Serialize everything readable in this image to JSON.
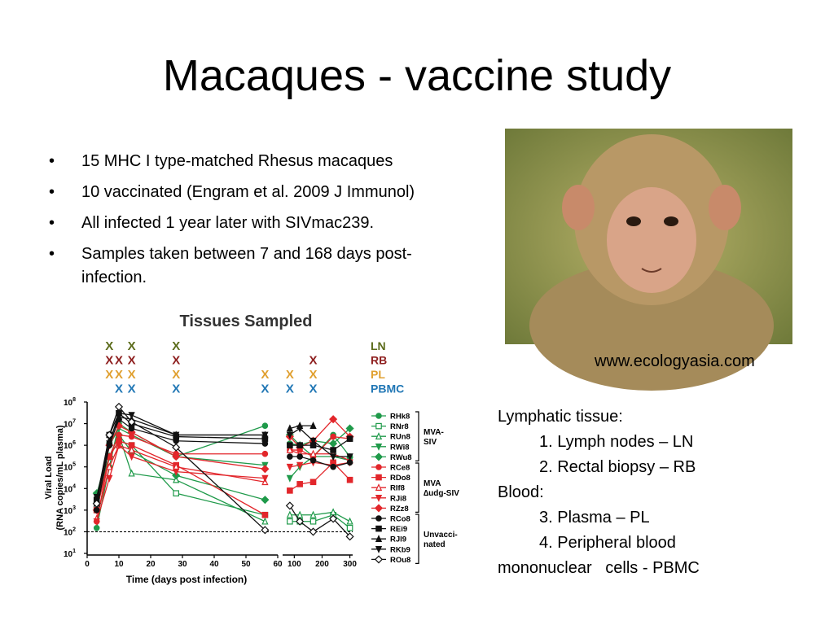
{
  "title": "Macaques - vaccine study",
  "bullets": [
    "15 MHC I type-matched Rhesus macaques",
    "10 vaccinated (Engram et al. 2009 J Immunol)",
    "All infected 1 year later with SIVmac239.",
    "Samples taken between 7 and 168 days post-infection."
  ],
  "photo_credit": "www.ecologyasia.com",
  "notes": {
    "lines": [
      {
        "text": "Lymphatic tissue:",
        "indent": false
      },
      {
        "text": "1. Lymph nodes – LN",
        "indent": true
      },
      {
        "text": "2. Rectal biopsy – RB",
        "indent": true
      },
      {
        "text": "Blood:",
        "indent": false
      },
      {
        "text": "3. Plasma – PL",
        "indent": true
      },
      {
        "text": "4. Peripheral blood mononuclear   cells - PBMC",
        "indent": true
      }
    ]
  },
  "chart_data": {
    "type": "line",
    "title": "Tissues Sampled",
    "x_label": "Time (days post infection)",
    "y_label": [
      "Viral Load",
      "(RNA copies/mL plasma)"
    ],
    "log_y": true,
    "ylim": [
      10,
      100000000
    ],
    "yticks": [
      {
        "value": 10,
        "base": "10",
        "exp": "1"
      },
      {
        "value": 100,
        "base": "10",
        "exp": "2"
      },
      {
        "value": 1000,
        "base": "10",
        "exp": "3"
      },
      {
        "value": 10000,
        "base": "10",
        "exp": "4"
      },
      {
        "value": 100000,
        "base": "10",
        "exp": "5"
      },
      {
        "value": 1000000,
        "base": "10",
        "exp": "6"
      },
      {
        "value": 10000000,
        "base": "10",
        "exp": "7"
      },
      {
        "value": 100000000,
        "base": "10",
        "exp": "8"
      }
    ],
    "panels": [
      {
        "xlim": [
          0,
          60
        ],
        "xticks": [
          0,
          10,
          20,
          30,
          40,
          50,
          60
        ]
      },
      {
        "xlim": [
          58,
          310
        ],
        "xticks": [
          100,
          200,
          300
        ]
      }
    ],
    "detection_limit": 100,
    "x": [
      3,
      7,
      10,
      14,
      28,
      56,
      84,
      120,
      168,
      240,
      300
    ],
    "tissues": {
      "mark": "X",
      "rows": [
        {
          "name": "LN",
          "color": "#5b6b1a",
          "days": [
            7,
            14,
            28
          ]
        },
        {
          "name": "RB",
          "color": "#8e1f1f",
          "days": [
            7,
            10,
            14,
            28,
            168
          ]
        },
        {
          "name": "PL",
          "color": "#e0a030",
          "days": [
            7,
            10,
            14,
            28,
            56,
            84,
            168
          ]
        },
        {
          "name": "PBMC",
          "color": "#2177b5",
          "days": [
            10,
            14,
            28,
            56,
            84,
            168
          ]
        }
      ]
    },
    "groups": [
      {
        "lines": [
          "MVA-",
          "SIV"
        ]
      },
      {
        "lines": [
          "MVA",
          "∆udg-SIV"
        ]
      },
      {
        "lines": [
          "Unvacci-",
          "nated"
        ]
      }
    ],
    "series": [
      {
        "name": "RHk8",
        "group": 0,
        "color": "#1f9a4a",
        "marker": "circle",
        "values": [
          150,
          100000.0,
          10000000.0,
          4000000.0,
          300000.0,
          8000000.0,
          1200000.0,
          1000000.0,
          300000.0,
          3000000.0,
          300000.0
        ]
      },
      {
        "name": "RNr8",
        "group": 0,
        "color": "#1f9a4a",
        "marker": "square-open",
        "values": [
          1000,
          300000.0,
          1600000.0,
          1000000.0,
          6000,
          600,
          300,
          300,
          300,
          600,
          150
        ]
      },
      {
        "name": "RUn8",
        "group": 0,
        "color": "#1f9a4a",
        "marker": "triangle-open",
        "values": [
          3000,
          300000.0,
          3000000.0,
          50000.0,
          25000.0,
          300,
          600,
          600,
          600,
          800,
          300
        ]
      },
      {
        "name": "RWi8",
        "group": 0,
        "color": "#1f9a4a",
        "marker": "triangle-down",
        "values": [
          5000,
          1000000.0,
          6000000.0,
          3000000.0,
          300000.0,
          120000.0,
          30000.0,
          100000.0,
          300000.0,
          300000.0,
          200000.0
        ]
      },
      {
        "name": "RWu8",
        "group": 0,
        "color": "#1f9a4a",
        "marker": "diamond",
        "values": [
          6000,
          300000.0,
          3000000.0,
          500000.0,
          40000.0,
          3000,
          3000000.0,
          1000000.0,
          1600000.0,
          1200000.0,
          6000000.0
        ]
      },
      {
        "name": "RCe8",
        "group": 1,
        "color": "#e2262b",
        "marker": "circle",
        "values": [
          300,
          300000.0,
          3000000.0,
          2500000.0,
          400000.0,
          400000.0,
          600000.0,
          600000.0,
          300000.0,
          2500000.0,
          2000000.0
        ]
      },
      {
        "name": "RDo8",
        "group": 1,
        "color": "#e2262b",
        "marker": "square",
        "values": [
          1000,
          300000.0,
          1600000.0,
          1000000.0,
          120000.0,
          600,
          8000,
          16000.0,
          20000.0,
          160000.0,
          25000.0
        ]
      },
      {
        "name": "RIf8",
        "group": 1,
        "color": "#e2262b",
        "marker": "triangle-open",
        "values": [
          400,
          100000.0,
          1000000.0,
          600000.0,
          100000.0,
          20000.0,
          600000.0,
          400000.0,
          400000.0,
          400000.0,
          200000.0
        ]
      },
      {
        "name": "RJi8",
        "group": 1,
        "color": "#e2262b",
        "marker": "triangle-down",
        "values": [
          300,
          30000.0,
          1000000.0,
          300000.0,
          60000.0,
          30000.0,
          100000.0,
          120000.0,
          160000.0,
          120000.0,
          160000.0
        ]
      },
      {
        "name": "RZz8",
        "group": 1,
        "color": "#e2262b",
        "marker": "diamond",
        "values": [
          1000,
          1000000.0,
          8000000.0,
          4000000.0,
          300000.0,
          80000.0,
          2500000.0,
          800000.0,
          1600000.0,
          16000000.0,
          2500000.0
        ]
      },
      {
        "name": "RCo8",
        "group": 2,
        "color": "#111111",
        "marker": "circle",
        "values": [
          1000,
          1000000.0,
          16000000.0,
          6000000.0,
          1600000.0,
          1200000.0,
          300000.0,
          300000.0,
          200000.0,
          100000.0,
          160000.0
        ]
      },
      {
        "name": "REi9",
        "group": 2,
        "color": "#111111",
        "marker": "square",
        "values": [
          3000,
          3000000.0,
          30000000.0,
          10000000.0,
          2500000.0,
          2000000.0,
          1000000.0,
          1000000.0,
          1000000.0,
          600000.0,
          2000000.0
        ]
      },
      {
        "name": "RJl9",
        "group": 2,
        "color": "#111111",
        "marker": "triangle",
        "values": [
          2000,
          1600000.0,
          20000000.0,
          16000000.0,
          3000000.0,
          3000000.0,
          6000000.0,
          8000000.0,
          8000000.0,
          null,
          null
        ]
      },
      {
        "name": "RKb9",
        "group": 2,
        "color": "#111111",
        "marker": "triangle-down",
        "values": [
          4000,
          1200000.0,
          30000000.0,
          25000000.0,
          3000000.0,
          3000000.0,
          3000000.0,
          6000000.0,
          1600000.0,
          300000.0,
          300000.0
        ]
      },
      {
        "name": "ROu8",
        "group": 2,
        "color": "#111111",
        "marker": "diamond-open",
        "values": [
          2000,
          3000000.0,
          60000000.0,
          12000000.0,
          800000.0,
          120,
          1600,
          300,
          100,
          400,
          60
        ]
      }
    ]
  }
}
